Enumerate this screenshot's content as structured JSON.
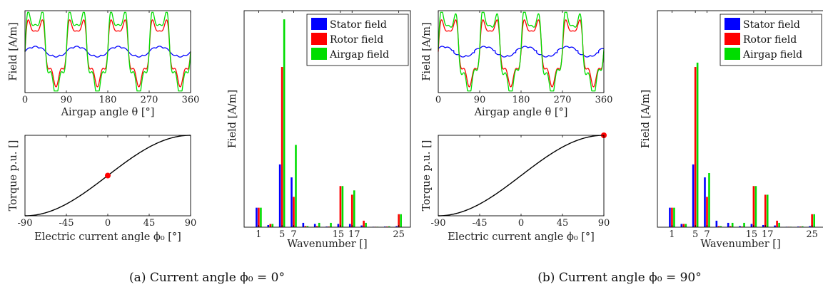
{
  "figure": {
    "caption_a": "(a) Current angle ϕ₀ = 0°",
    "caption_b": "(b) Current angle ϕ₀ = 90°"
  },
  "chart_data": [
    {
      "id": "a-field",
      "type": "line",
      "xlabel": "Airgap angle θ [°]",
      "ylabel": "Field [A/m]",
      "xlim": [
        0,
        360
      ],
      "xticks": [
        0,
        90,
        180,
        270,
        360
      ],
      "series": [
        {
          "name": "Stator field",
          "color": "#0000ff",
          "rotor_shift_deg": 0
        },
        {
          "name": "Rotor field",
          "color": "#ff0000"
        },
        {
          "name": "Airgap field",
          "color": "#00dd00"
        }
      ]
    },
    {
      "id": "a-torque",
      "type": "line",
      "xlabel": "Electric current angle ϕ₀ [°]",
      "ylabel": "Torque p.u. []",
      "xlim": [
        -90,
        90
      ],
      "ylim": [
        0,
        1
      ],
      "xticks": [
        -90,
        -45,
        0,
        45,
        90
      ],
      "curve_color": "#000000",
      "marker": {
        "x": 0,
        "y": 0.5,
        "color": "#ff0000"
      }
    },
    {
      "id": "a-spectrum",
      "type": "bar",
      "xlabel": "Wavenumber []",
      "ylabel": "Field [A/m]",
      "xticks": [
        1,
        5,
        7,
        15,
        17,
        25
      ],
      "legend_position": "top-right",
      "series": [
        {
          "name": "Stator field",
          "color": "#0000ff",
          "x": [
            1,
            3,
            5,
            7,
            9,
            11,
            13,
            15,
            17,
            19,
            21,
            23,
            25
          ],
          "values": [
            0.09,
            0.01,
            0.29,
            0.23,
            0.02,
            0.015,
            0.003,
            0.015,
            0.015,
            0.008,
            0.002,
            0.003,
            0.005
          ]
        },
        {
          "name": "Rotor field",
          "color": "#ff0000",
          "x": [
            1,
            3,
            5,
            7,
            9,
            11,
            13,
            15,
            17,
            19,
            21,
            23,
            25
          ],
          "values": [
            0.09,
            0.015,
            0.74,
            0.14,
            0.005,
            0.005,
            0.003,
            0.19,
            0.15,
            0.03,
            0.002,
            0.003,
            0.06
          ]
        },
        {
          "name": "Airgap field",
          "color": "#00dd00",
          "x": [
            1,
            3,
            5,
            7,
            9,
            11,
            13,
            15,
            17,
            19,
            21,
            23,
            25
          ],
          "values": [
            0.09,
            0.015,
            0.96,
            0.38,
            0.005,
            0.02,
            0.02,
            0.19,
            0.17,
            0.02,
            0.002,
            0.004,
            0.06
          ]
        }
      ]
    },
    {
      "id": "b-field",
      "type": "line",
      "xlabel": "Airgap angle θ [°]",
      "ylabel": "Field [A/m]",
      "xlim": [
        0,
        360
      ],
      "xticks": [
        0,
        90,
        180,
        270,
        360
      ],
      "series": [
        {
          "name": "Stator field",
          "color": "#0000ff",
          "rotor_shift_deg": 45
        },
        {
          "name": "Rotor field",
          "color": "#ff0000"
        },
        {
          "name": "Airgap field",
          "color": "#00dd00"
        }
      ]
    },
    {
      "id": "b-torque",
      "type": "line",
      "xlabel": "Electric current angle ϕ₀ [°]",
      "ylabel": "Torque p.u. []",
      "xlim": [
        -90,
        90
      ],
      "ylim": [
        0,
        1
      ],
      "xticks": [
        -90,
        -45,
        0,
        45,
        90
      ],
      "curve_color": "#000000",
      "marker": {
        "x": 90,
        "y": 1.0,
        "color": "#ff0000"
      }
    },
    {
      "id": "b-spectrum",
      "type": "bar",
      "xlabel": "Wavenumber []",
      "ylabel": "Field [A/m]",
      "xticks": [
        1,
        5,
        7,
        15,
        17,
        25
      ],
      "legend_position": "top-right",
      "series": [
        {
          "name": "Stator field",
          "color": "#0000ff",
          "x": [
            1,
            3,
            5,
            7,
            9,
            11,
            13,
            15,
            17,
            19,
            21,
            23,
            25
          ],
          "values": [
            0.09,
            0.015,
            0.29,
            0.23,
            0.03,
            0.02,
            0.005,
            0.015,
            0.01,
            0.008,
            0.002,
            0.003,
            0.005
          ]
        },
        {
          "name": "Rotor field",
          "color": "#ff0000",
          "x": [
            1,
            3,
            5,
            7,
            9,
            11,
            13,
            15,
            17,
            19,
            21,
            23,
            25
          ],
          "values": [
            0.09,
            0.015,
            0.74,
            0.14,
            0.005,
            0.005,
            0.003,
            0.19,
            0.15,
            0.03,
            0.002,
            0.003,
            0.06
          ]
        },
        {
          "name": "Airgap field",
          "color": "#00dd00",
          "x": [
            1,
            3,
            5,
            7,
            9,
            11,
            13,
            15,
            17,
            19,
            21,
            23,
            25
          ],
          "values": [
            0.09,
            0.015,
            0.76,
            0.25,
            0.005,
            0.02,
            0.02,
            0.19,
            0.15,
            0.02,
            0.002,
            0.004,
            0.06
          ]
        }
      ]
    }
  ]
}
